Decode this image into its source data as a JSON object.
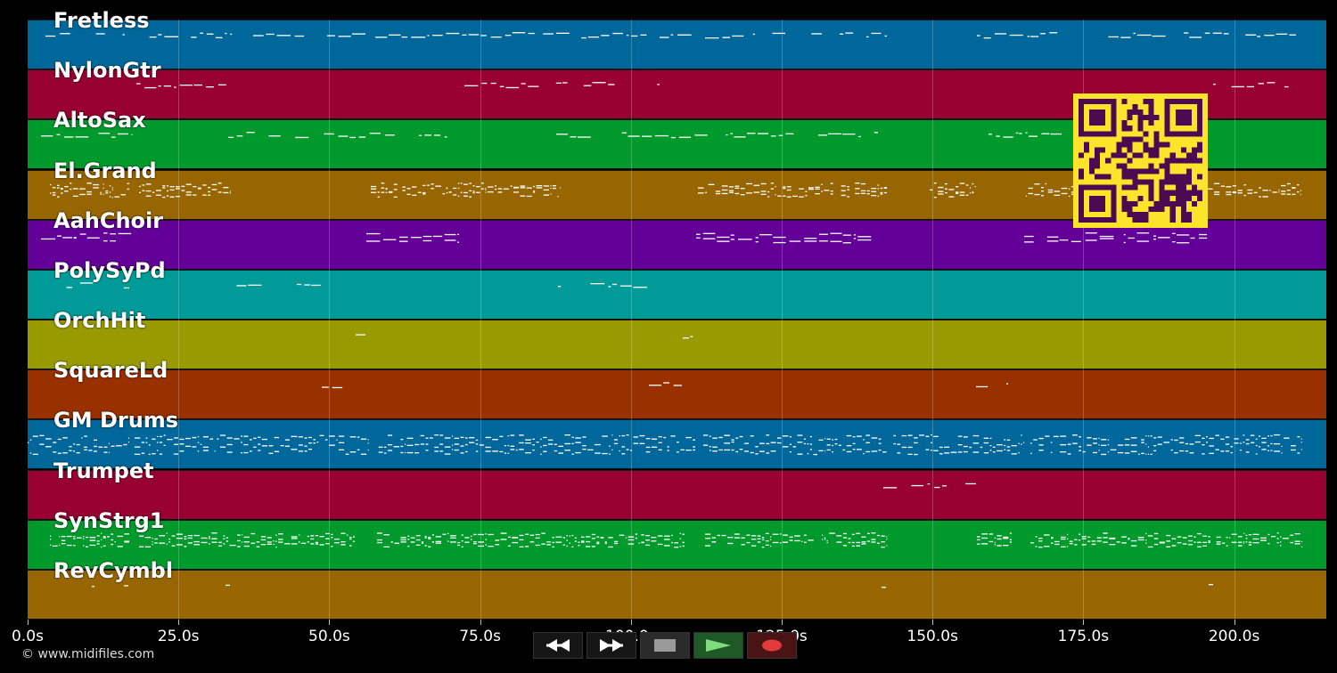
{
  "tracks": [
    {
      "name": "Fretless",
      "color": "#00679a"
    },
    {
      "name": "NylonGtr",
      "color": "#980032"
    },
    {
      "name": "AltoSax",
      "color": "#009a2c"
    },
    {
      "name": "El.Grand",
      "color": "#986600"
    },
    {
      "name": "AahChoir",
      "color": "#620098"
    },
    {
      "name": "PolySyPd",
      "color": "#009a98"
    },
    {
      "name": "OrchHit",
      "color": "#989a00"
    },
    {
      "name": "SquareLd",
      "color": "#983000"
    },
    {
      "name": "GM Drums",
      "color": "#00679a"
    },
    {
      "name": "Trumpet",
      "color": "#980032"
    },
    {
      "name": "SynStrg1",
      "color": "#009a2c"
    },
    {
      "name": "RevCymbl",
      "color": "#986600"
    }
  ],
  "timeline": {
    "ticks": [
      "0.0s",
      "25.0s",
      "50.0s",
      "75.0s",
      "100.0s",
      "125.0s",
      "150.0s",
      "175.0s",
      "200.0s"
    ]
  },
  "copyright": "© www.midifiles.com",
  "transport": [
    {
      "name": "rewind-button",
      "icon": "rewind-icon"
    },
    {
      "name": "fast-forward-button",
      "icon": "fast-forward-icon"
    },
    {
      "name": "stop-button",
      "icon": "stop-icon"
    },
    {
      "name": "play-button",
      "icon": "play-icon"
    },
    {
      "name": "record-button",
      "icon": "record-icon"
    }
  ],
  "qr_code": {
    "icon": "qr-code-icon",
    "color": "#fbe42a"
  }
}
